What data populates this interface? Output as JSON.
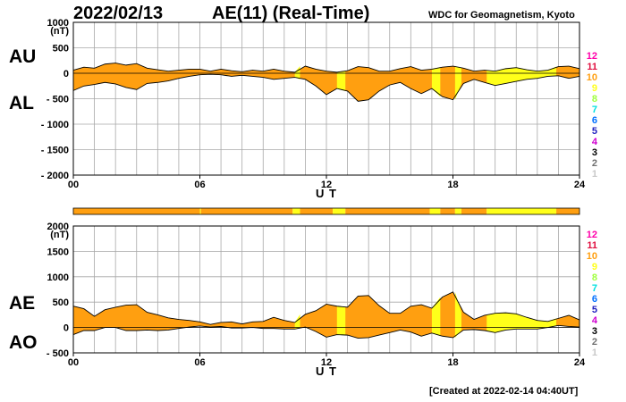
{
  "header": {
    "date": "2022/02/13",
    "title": "AE(11) (Real-Time)",
    "org": "WDC for Geomagnetism, Kyoto"
  },
  "footer": {
    "created": "[Created at 2022-02-14 04:40UT]"
  },
  "colors": {
    "fill_orange": "#FF9F10",
    "fill_yellow": "#FFFF1A",
    "fill_bright_orange": "#FFB000",
    "grid": "#A8A8A8",
    "bar_orange": "#FF9F10",
    "bar_yellow": "#FFFF1A"
  },
  "color_scale": {
    "levels": [
      "12",
      "11",
      "10",
      "9",
      "8",
      "7",
      "6",
      "5",
      "4",
      "3",
      "2",
      "1"
    ],
    "colors": [
      "#FF00AA",
      "#E01040",
      "#FF9F10",
      "#FFFF1A",
      "#A0FF40",
      "#00E0E0",
      "#0070FF",
      "#2020C0",
      "#D000D0",
      "#000000",
      "#707070",
      "#C8C8C8"
    ]
  },
  "chart_data": [
    {
      "type": "area",
      "name": "AU/AL",
      "series_labels": [
        "AU",
        "AL"
      ],
      "ylabel": "(nT)",
      "xlabel": "U T",
      "xlim": [
        0,
        24
      ],
      "ylim": [
        -2000,
        1000
      ],
      "x_ticks": [
        "00",
        "06",
        "12",
        "18",
        "24"
      ],
      "y_ticks": [
        "1000",
        "500",
        "0",
        "- 500",
        "- 1000",
        "- 1500",
        "- 2000"
      ],
      "x": [
        0,
        0.5,
        1,
        1.5,
        2,
        2.5,
        3,
        3.5,
        4,
        4.5,
        5,
        5.5,
        6,
        6.5,
        7,
        7.5,
        8,
        8.5,
        9,
        9.5,
        10,
        10.5,
        11,
        11.5,
        12,
        12.5,
        13,
        13.5,
        14,
        14.5,
        15,
        15.5,
        16,
        16.5,
        17,
        17.5,
        18,
        18.5,
        19,
        19.5,
        20,
        20.5,
        21,
        21.5,
        22,
        22.5,
        23,
        23.5,
        24
      ],
      "upper": [
        60,
        120,
        100,
        180,
        200,
        160,
        190,
        100,
        70,
        40,
        60,
        80,
        80,
        40,
        80,
        50,
        30,
        60,
        40,
        80,
        40,
        20,
        140,
        80,
        40,
        20,
        50,
        130,
        110,
        40,
        40,
        90,
        130,
        60,
        80,
        120,
        140,
        100,
        40,
        60,
        40,
        90,
        110,
        70,
        40,
        60,
        130,
        140,
        90
      ],
      "lower": [
        -340,
        -250,
        -220,
        -180,
        -210,
        -280,
        -320,
        -200,
        -180,
        -150,
        -100,
        -60,
        -30,
        -20,
        -30,
        -60,
        -40,
        -60,
        -80,
        -120,
        -100,
        -80,
        -120,
        -250,
        -420,
        -300,
        -350,
        -550,
        -520,
        -350,
        -230,
        -180,
        -300,
        -400,
        -300,
        -460,
        -520,
        -200,
        -120,
        -180,
        -240,
        -200,
        -160,
        -120,
        -100,
        -60,
        -50,
        -100,
        -60
      ]
    },
    {
      "type": "area",
      "name": "AE/AO",
      "series_labels": [
        "AE",
        "AO"
      ],
      "ylabel": "(nT)",
      "xlabel": "U T",
      "xlim": [
        0,
        24
      ],
      "ylim": [
        -500,
        2000
      ],
      "x_ticks": [
        "00",
        "06",
        "12",
        "18",
        "24"
      ],
      "y_ticks": [
        "2000",
        "1500",
        "1000",
        "500",
        "0",
        "- 500"
      ],
      "x": [
        0,
        0.5,
        1,
        1.5,
        2,
        2.5,
        3,
        3.5,
        4,
        4.5,
        5,
        5.5,
        6,
        6.5,
        7,
        7.5,
        8,
        8.5,
        9,
        9.5,
        10,
        10.5,
        11,
        11.5,
        12,
        12.5,
        13,
        13.5,
        14,
        14.5,
        15,
        15.5,
        16,
        16.5,
        17,
        17.5,
        18,
        18.5,
        19,
        19.5,
        20,
        20.5,
        21,
        21.5,
        22,
        22.5,
        23,
        23.5,
        24
      ],
      "upper": [
        420,
        370,
        220,
        350,
        400,
        440,
        450,
        300,
        250,
        190,
        160,
        140,
        110,
        60,
        100,
        110,
        70,
        110,
        120,
        200,
        140,
        100,
        260,
        330,
        460,
        420,
        400,
        620,
        630,
        430,
        280,
        280,
        420,
        450,
        380,
        600,
        700,
        300,
        160,
        240,
        280,
        290,
        270,
        200,
        140,
        120,
        180,
        240,
        150
      ],
      "lower": [
        -140,
        -60,
        -60,
        0,
        0,
        -60,
        -60,
        -50,
        -60,
        -50,
        -20,
        10,
        30,
        10,
        20,
        -10,
        -10,
        0,
        -20,
        -20,
        -30,
        -30,
        10,
        -80,
        -190,
        -140,
        -150,
        -210,
        -200,
        -150,
        -100,
        -50,
        -90,
        -170,
        -110,
        -170,
        -200,
        -50,
        -40,
        -60,
        -100,
        -50,
        -30,
        -30,
        -30,
        0,
        40,
        20,
        10
      ]
    }
  ],
  "activity_bar": [
    {
      "start": 0,
      "end": 6,
      "color": "orange"
    },
    {
      "start": 6,
      "end": 6.05,
      "color": "yellow"
    },
    {
      "start": 6.05,
      "end": 10.4,
      "color": "orange"
    },
    {
      "start": 10.4,
      "end": 10.75,
      "color": "yellow"
    },
    {
      "start": 10.75,
      "end": 12.3,
      "color": "orange"
    },
    {
      "start": 12.3,
      "end": 12.9,
      "color": "yellow"
    },
    {
      "start": 12.9,
      "end": 16.9,
      "color": "orange"
    },
    {
      "start": 16.9,
      "end": 17.4,
      "color": "yellow"
    },
    {
      "start": 17.4,
      "end": 18.1,
      "color": "orange"
    },
    {
      "start": 18.1,
      "end": 18.4,
      "color": "yellow"
    },
    {
      "start": 18.4,
      "end": 19.6,
      "color": "orange"
    },
    {
      "start": 19.6,
      "end": 22.9,
      "color": "yellow"
    },
    {
      "start": 22.9,
      "end": 24,
      "color": "orange"
    }
  ]
}
